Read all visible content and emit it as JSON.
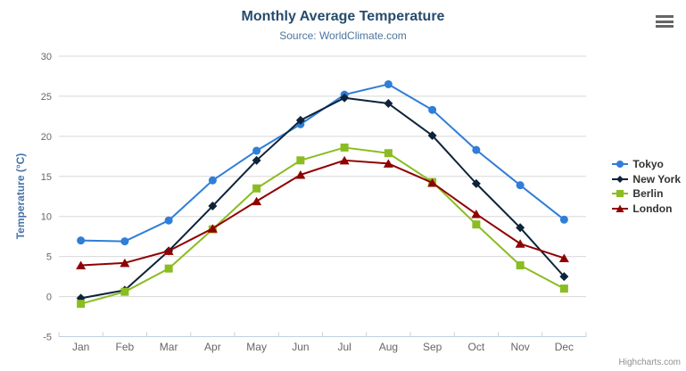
{
  "header": {
    "title": "Monthly Average Temperature",
    "subtitle": "Source: WorldClimate.com"
  },
  "credits": {
    "label": "Highcharts.com"
  },
  "menu_icon": "hamburger-icon",
  "colors": {
    "title": "#274b6d",
    "subtitle": "#4d759e",
    "yaxis_title": "#4572a7",
    "axis_label": "#666666",
    "grid": "#d8d8d8",
    "axis_line": "#c0d0e0",
    "tick": "#c0d0e0",
    "legend_text": "#333333",
    "credits_text": "#909090",
    "menu_icon": "#666666"
  },
  "chart_data": {
    "type": "line",
    "title": "Monthly Average Temperature",
    "subtitle": "Source: WorldClimate.com",
    "xlabel": "",
    "ylabel": "Temperature (°C)",
    "ylim": [
      -5,
      30
    ],
    "ytick_step": 5,
    "grid": true,
    "legend_position": "right",
    "categories": [
      "Jan",
      "Feb",
      "Mar",
      "Apr",
      "May",
      "Jun",
      "Jul",
      "Aug",
      "Sep",
      "Oct",
      "Nov",
      "Dec"
    ],
    "series": [
      {
        "name": "Tokyo",
        "color": "#2f7ed8",
        "marker": "circle",
        "values": [
          7.0,
          6.9,
          9.5,
          14.5,
          18.2,
          21.5,
          25.2,
          26.5,
          23.3,
          18.3,
          13.9,
          9.6
        ]
      },
      {
        "name": "New York",
        "color": "#0d233a",
        "marker": "diamond",
        "values": [
          -0.2,
          0.8,
          5.7,
          11.3,
          17.0,
          22.0,
          24.8,
          24.1,
          20.1,
          14.1,
          8.6,
          2.5
        ]
      },
      {
        "name": "Berlin",
        "color": "#8bbc21",
        "marker": "square",
        "values": [
          -0.9,
          0.6,
          3.5,
          8.4,
          13.5,
          17.0,
          18.6,
          17.9,
          14.3,
          9.0,
          3.9,
          1.0
        ]
      },
      {
        "name": "London",
        "color": "#910000",
        "marker": "triangle",
        "values": [
          3.9,
          4.2,
          5.7,
          8.5,
          11.9,
          15.2,
          17.0,
          16.6,
          14.2,
          10.3,
          6.6,
          4.8
        ]
      }
    ]
  }
}
